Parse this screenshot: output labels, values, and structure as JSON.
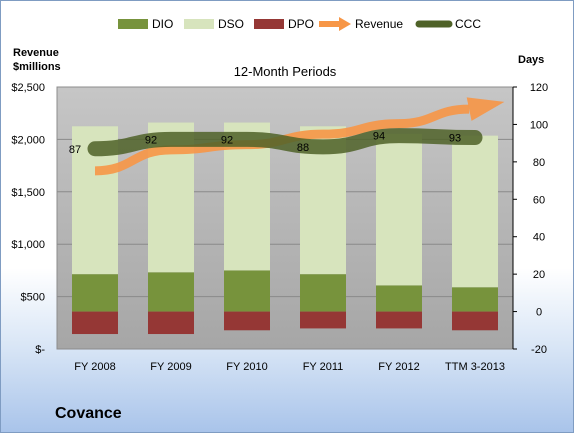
{
  "company": "Covance",
  "chart_data": {
    "type": "bar",
    "title": "12-Month Periods",
    "left_axis_title": [
      "Revenue",
      "$millions"
    ],
    "right_axis_title": "Days",
    "categories": [
      "FY 2008",
      "FY 2009",
      "FY 2010",
      "FY 2011",
      "FY 2012",
      "TTM 3-2013"
    ],
    "left_axis": {
      "min": 0,
      "max": 2500,
      "ticks": [
        "$-",
        "$500",
        "$1,000",
        "$1,500",
        "$2,000",
        "$2,500"
      ]
    },
    "right_axis": {
      "min": -20,
      "max": 120,
      "ticks": [
        "-20",
        "0",
        "20",
        "40",
        "60",
        "80",
        "100",
        "120"
      ]
    },
    "legend": {
      "position": "top",
      "entries": [
        "DIO",
        "DSO",
        "DPO",
        "Revenue",
        "CCC"
      ]
    },
    "series": [
      {
        "name": "DIO",
        "axis": "right",
        "kind": "stacked-bar",
        "values": [
          20,
          21,
          22,
          20,
          14,
          13
        ]
      },
      {
        "name": "DSO",
        "axis": "right",
        "kind": "stacked-bar",
        "values": [
          79,
          80,
          79,
          79,
          81,
          81
        ]
      },
      {
        "name": "DPO",
        "axis": "right",
        "kind": "negative-bar",
        "values": [
          -12,
          -12,
          -10,
          -9,
          -9,
          -10
        ]
      },
      {
        "name": "Revenue",
        "axis": "left",
        "kind": "arrow-line",
        "values": [
          1700,
          1900,
          1950,
          2050,
          2150,
          2300
        ]
      },
      {
        "name": "CCC",
        "axis": "right",
        "kind": "line",
        "values": [
          87,
          92,
          92,
          88,
          94,
          93
        ],
        "labels": [
          "87",
          "92",
          "92",
          "88",
          "94",
          "93"
        ]
      }
    ],
    "colors": {
      "DIO": "#77933c",
      "DSO": "#d7e4bd",
      "DPO": "#953735",
      "Revenue": "#f79646",
      "CCC": "#4f6228",
      "plot_background": "#bfbfbf"
    },
    "grid": true
  }
}
